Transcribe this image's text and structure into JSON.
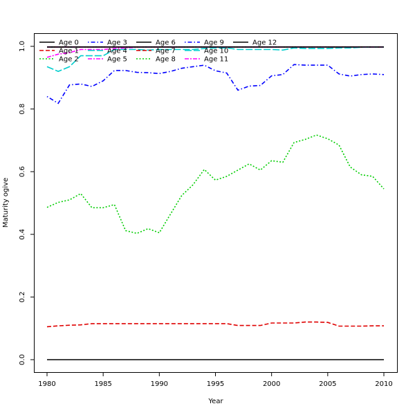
{
  "chart_data": {
    "type": "line",
    "xlabel": "Year",
    "ylabel": "Maturity ogive",
    "xlim": [
      1980,
      2010
    ],
    "ylim": [
      0.0,
      1.0
    ],
    "x_ticks": [
      1980,
      1985,
      1990,
      1995,
      2000,
      2005,
      2010
    ],
    "y_ticks": [
      0.0,
      0.2,
      0.4,
      0.6,
      0.8,
      1.0
    ],
    "legend_position": "top-left",
    "grid": false,
    "x": [
      1980,
      1981,
      1982,
      1983,
      1984,
      1985,
      1986,
      1987,
      1988,
      1989,
      1990,
      1991,
      1992,
      1993,
      1994,
      1995,
      1996,
      1997,
      1998,
      1999,
      2000,
      2001,
      2002,
      2003,
      2004,
      2005,
      2006,
      2007,
      2008,
      2009,
      2010
    ],
    "series": [
      {
        "name": "Age 0",
        "color": "#000000",
        "values": [
          0,
          0,
          0,
          0,
          0,
          0,
          0,
          0,
          0,
          0,
          0,
          0,
          0,
          0,
          0,
          0,
          0,
          0,
          0,
          0,
          0,
          0,
          0,
          0,
          0,
          0,
          0,
          0,
          0,
          0,
          0
        ]
      },
      {
        "name": "Age 1",
        "color": "#DF0000",
        "values": [
          0.105,
          0.108,
          0.11,
          0.111,
          0.115,
          0.115,
          0.115,
          0.115,
          0.115,
          0.115,
          0.115,
          0.115,
          0.115,
          0.115,
          0.115,
          0.115,
          0.115,
          0.109,
          0.109,
          0.109,
          0.117,
          0.117,
          0.117,
          0.12,
          0.12,
          0.119,
          0.107,
          0.107,
          0.107,
          0.108,
          0.108
        ]
      },
      {
        "name": "Age 2",
        "color": "#00CD00",
        "values": [
          0.486,
          0.502,
          0.51,
          0.53,
          0.485,
          0.485,
          0.495,
          0.412,
          0.403,
          0.418,
          0.405,
          0.465,
          0.524,
          0.558,
          0.607,
          0.573,
          0.585,
          0.605,
          0.625,
          0.605,
          0.635,
          0.63,
          0.693,
          0.703,
          0.717,
          0.705,
          0.685,
          0.615,
          0.59,
          0.585,
          0.545
        ]
      },
      {
        "name": "Age 3",
        "color": "#0000FF",
        "values": [
          0.998,
          0.998,
          0.998,
          0.998,
          0.998,
          0.998,
          0.998,
          0.998,
          0.998,
          0.998,
          0.998,
          0.998,
          0.998,
          0.998,
          0.998,
          0.998,
          0.998,
          0.998,
          0.998,
          0.998,
          0.998,
          0.998,
          0.998,
          0.998,
          0.998,
          0.998,
          0.998,
          0.998,
          0.998,
          0.998,
          0.998
        ]
      },
      {
        "name": "Age 4",
        "color": "#00CDCD",
        "values": [
          0.998,
          0.998,
          0.998,
          0.998,
          0.998,
          0.998,
          0.998,
          0.998,
          0.998,
          0.998,
          0.998,
          0.998,
          0.998,
          0.998,
          0.998,
          0.998,
          0.998,
          0.998,
          0.998,
          0.998,
          0.998,
          0.998,
          0.998,
          0.998,
          0.998,
          0.998,
          0.998,
          0.998,
          0.998,
          0.998,
          0.998
        ]
      },
      {
        "name": "Age 5",
        "color": "#FF00FF",
        "values": [
          0.965,
          0.975,
          0.98,
          0.99,
          0.99,
          0.99,
          0.993,
          0.995,
          0.997,
          0.998,
          0.998,
          0.998,
          0.998,
          0.998,
          0.998,
          0.998,
          0.998,
          0.998,
          0.998,
          0.998,
          0.998,
          0.998,
          0.998,
          0.998,
          0.998,
          0.998,
          0.998,
          0.998,
          0.998,
          0.998,
          0.998
        ]
      },
      {
        "name": "Age 6",
        "color": "#000000",
        "values": [
          0.998,
          0.998,
          0.998,
          0.998,
          0.998,
          0.998,
          0.998,
          0.998,
          0.998,
          0.998,
          0.998,
          0.998,
          0.998,
          0.998,
          0.998,
          0.998,
          0.998,
          0.998,
          0.998,
          0.998,
          0.998,
          0.998,
          0.998,
          0.998,
          0.998,
          0.998,
          0.998,
          0.998,
          0.998,
          0.998,
          0.998
        ]
      },
      {
        "name": "Age 7",
        "color": "#DF0000",
        "values": [
          0.998,
          0.998,
          0.998,
          0.998,
          0.998,
          0.998,
          0.998,
          0.998,
          0.998,
          0.998,
          0.998,
          0.998,
          0.998,
          0.998,
          0.998,
          0.998,
          0.998,
          0.998,
          0.998,
          0.998,
          0.998,
          0.998,
          0.998,
          0.998,
          0.998,
          0.998,
          0.998,
          0.998,
          0.998,
          0.998,
          0.998
        ]
      },
      {
        "name": "Age 8",
        "color": "#00CD00",
        "values": [
          0.998,
          0.998,
          0.998,
          0.998,
          0.998,
          0.998,
          0.998,
          0.998,
          0.998,
          0.998,
          0.998,
          0.998,
          0.998,
          0.998,
          0.998,
          0.998,
          0.998,
          0.998,
          0.998,
          0.998,
          0.998,
          0.998,
          0.998,
          0.998,
          0.998,
          0.998,
          0.998,
          0.998,
          0.998,
          0.998,
          0.998
        ]
      },
      {
        "name": "Age 9",
        "color": "#0000FF",
        "values": [
          0.84,
          0.818,
          0.877,
          0.88,
          0.872,
          0.89,
          0.923,
          0.923,
          0.917,
          0.916,
          0.913,
          0.92,
          0.93,
          0.935,
          0.94,
          0.922,
          0.915,
          0.86,
          0.873,
          0.875,
          0.906,
          0.91,
          0.942,
          0.94,
          0.94,
          0.94,
          0.912,
          0.905,
          0.91,
          0.912,
          0.91
        ]
      },
      {
        "name": "Age 10",
        "color": "#00CDCD",
        "values": [
          0.935,
          0.92,
          0.935,
          0.97,
          0.97,
          0.97,
          0.99,
          0.99,
          0.99,
          0.988,
          0.99,
          0.99,
          0.99,
          0.99,
          0.993,
          0.995,
          0.995,
          0.99,
          0.99,
          0.99,
          0.99,
          0.988,
          0.995,
          0.993,
          0.993,
          0.993,
          0.995,
          0.995,
          0.997,
          0.998,
          0.998
        ]
      },
      {
        "name": "Age 11",
        "color": "#FF00FF",
        "values": [
          0.998,
          0.998,
          0.998,
          0.998,
          0.998,
          0.998,
          0.998,
          0.998,
          0.998,
          0.998,
          0.998,
          0.998,
          0.998,
          0.998,
          0.998,
          0.998,
          0.998,
          0.998,
          0.998,
          0.998,
          0.998,
          0.998,
          0.998,
          0.998,
          0.998,
          0.998,
          0.998,
          0.998,
          0.998,
          0.998,
          0.998
        ]
      },
      {
        "name": "Age 12",
        "color": "#000000",
        "values": [
          0.998,
          0.998,
          0.998,
          0.998,
          0.998,
          0.998,
          0.998,
          0.998,
          0.998,
          0.998,
          0.998,
          0.998,
          0.998,
          0.998,
          0.998,
          0.998,
          0.998,
          0.998,
          0.998,
          0.998,
          0.998,
          0.998,
          0.998,
          0.998,
          0.998,
          0.998,
          0.998,
          0.998,
          0.998,
          0.998,
          0.998
        ]
      }
    ]
  }
}
